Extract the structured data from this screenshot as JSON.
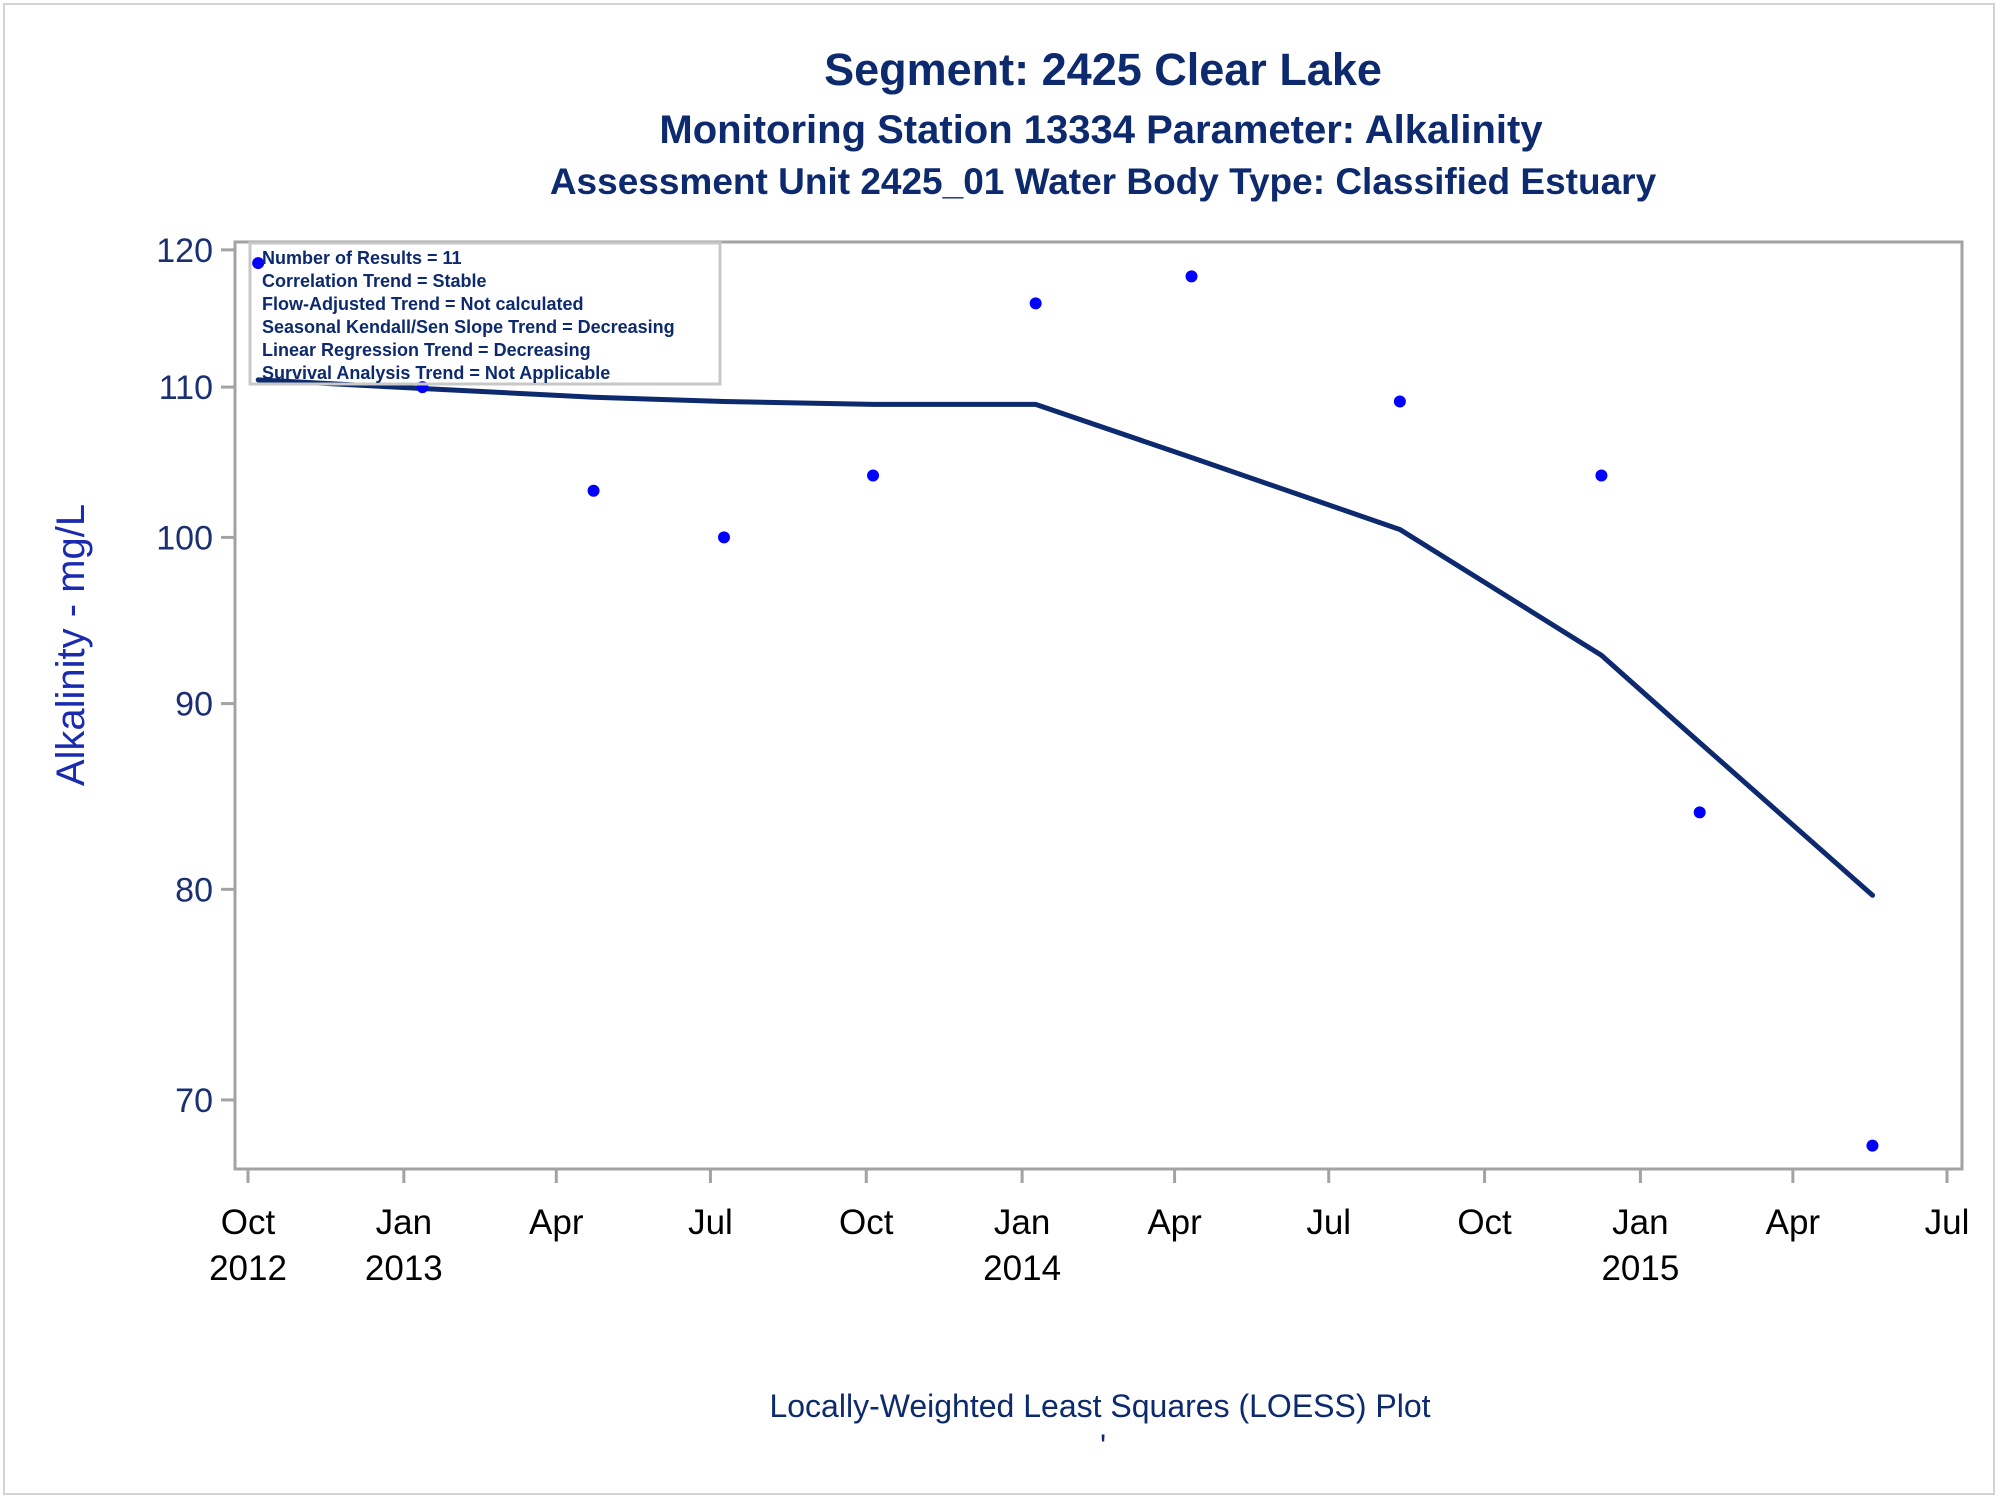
{
  "titles": {
    "line1": "Segment: 2425  Clear Lake",
    "line2": "Monitoring Station 13334 Parameter: Alkalinity",
    "line3": "Assessment Unit 2425_01    Water Body Type: Classified Estuary"
  },
  "footnote": "Locally-Weighted Least Squares (LOESS) Plot",
  "footnote_mark": "'",
  "inset": {
    "lines": [
      "Number of Results = 11",
      "Correlation Trend = Stable",
      "Flow-Adjusted Trend = Not calculated",
      "Seasonal Kendall/Sen Slope Trend = Decreasing",
      "Linear Regression Trend = Decreasing",
      "Survival Analysis Trend = Not Applicable"
    ]
  },
  "colors": {
    "points": "#0000ff",
    "line": "#0d2a6e",
    "axis": "#a3a3a3",
    "text": "#0d2a6e"
  },
  "chart_data": {
    "type": "scatter",
    "ylabel": "Alkalinity - mg/L",
    "xlabel": "",
    "ylim": [
      67,
      120.6
    ],
    "y_scale": "log",
    "y_ticks": [
      70,
      80,
      90,
      100,
      110,
      120
    ],
    "xlim": [
      "2012-10-01",
      "2015-07-01"
    ],
    "x_ticks": [
      {
        "date": "2012-10-01",
        "label": "Oct",
        "year": "2012"
      },
      {
        "date": "2013-01-01",
        "label": "Jan",
        "year": "2013"
      },
      {
        "date": "2013-04-01",
        "label": "Apr",
        "year": ""
      },
      {
        "date": "2013-07-01",
        "label": "Jul",
        "year": ""
      },
      {
        "date": "2013-10-01",
        "label": "Oct",
        "year": ""
      },
      {
        "date": "2014-01-01",
        "label": "Jan",
        "year": "2014"
      },
      {
        "date": "2014-04-01",
        "label": "Apr",
        "year": ""
      },
      {
        "date": "2014-07-01",
        "label": "Jul",
        "year": ""
      },
      {
        "date": "2014-10-01",
        "label": "Oct",
        "year": ""
      },
      {
        "date": "2015-01-01",
        "label": "Jan",
        "year": "2015"
      },
      {
        "date": "2015-04-01",
        "label": "Apr",
        "year": ""
      },
      {
        "date": "2015-07-01",
        "label": "Jul",
        "year": ""
      }
    ],
    "series": [
      {
        "kind": "points",
        "x": [
          "2012-10-07",
          "2013-01-12",
          "2013-04-23",
          "2013-07-09",
          "2013-10-05",
          "2014-01-09",
          "2014-04-11",
          "2014-08-12",
          "2014-12-09",
          "2015-02-05",
          "2015-05-18"
        ],
        "y": [
          119,
          110,
          103,
          100,
          104,
          116,
          118,
          109,
          104,
          84,
          68
        ]
      },
      {
        "kind": "loess",
        "x": [
          "2012-10-07",
          "2013-01-12",
          "2013-04-23",
          "2013-07-09",
          "2013-10-05",
          "2014-01-09",
          "2014-04-11",
          "2014-08-12",
          "2014-12-09",
          "2015-02-05",
          "2015-05-18"
        ],
        "y": [
          110.5,
          109.9,
          109.3,
          109.0,
          108.8,
          108.8,
          105.2,
          100.5,
          92.8,
          87.8,
          79.7
        ]
      }
    ]
  }
}
